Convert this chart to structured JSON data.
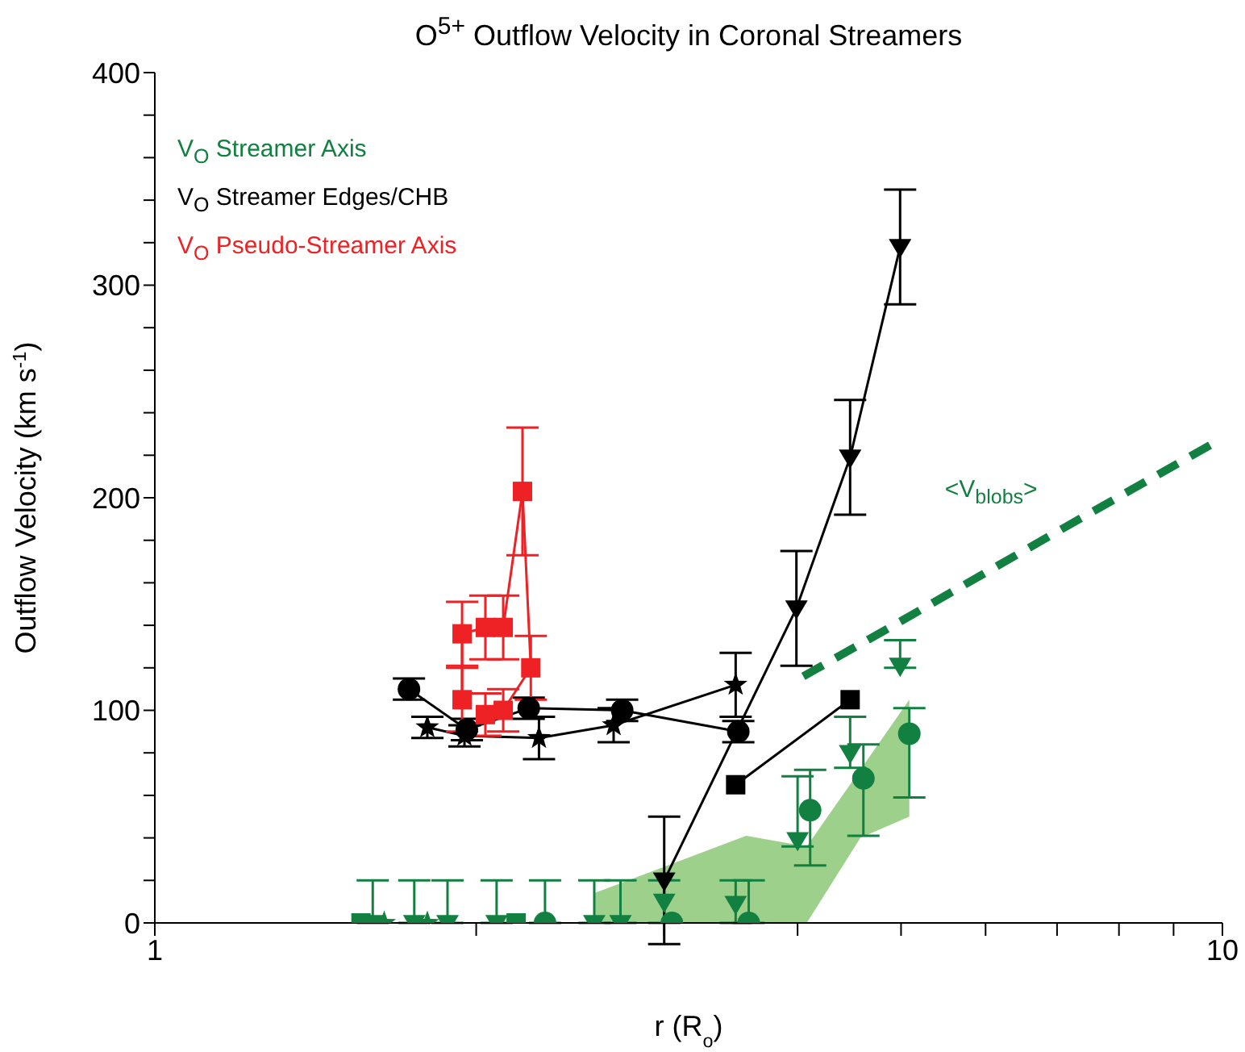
{
  "chart_data": {
    "type": "scatter",
    "title": "O$^{5+}$ Outflow Velocity in Coronal Streamers",
    "xlabel": "r (R$_{o}$)",
    "ylabel": "Outflow Velocity  (km s$^{-1}$)",
    "log": "x",
    "legend": "top left",
    "xlim": [
      1,
      10
    ],
    "xticks": [
      1,
      {
        "value": 2,
        "label": null
      },
      {
        "value": 3,
        "label": null
      },
      {
        "value": 4,
        "label": null
      },
      {
        "value": 5,
        "label": null
      },
      {
        "value": 6,
        "label": null
      },
      {
        "value": 7,
        "label": null
      },
      {
        "value": 8,
        "label": null
      },
      {
        "value": 9,
        "label": null
      },
      10
    ],
    "ylim": [
      0,
      400
    ],
    "yticks": [
      0,
      {
        "value": 20,
        "label": null
      },
      {
        "value": 40,
        "label": null
      },
      {
        "value": 60,
        "label": null
      },
      {
        "value": 80,
        "label": null
      },
      100,
      {
        "value": 120,
        "label": null
      },
      {
        "value": 140,
        "label": null
      },
      {
        "value": 160,
        "label": null
      },
      {
        "value": 180,
        "label": null
      },
      200,
      {
        "value": 220,
        "label": null
      },
      {
        "value": 240,
        "label": null
      },
      {
        "value": 260,
        "label": null
      },
      {
        "value": 280,
        "label": null
      },
      300,
      {
        "value": 320,
        "label": null
      },
      {
        "value": 340,
        "label": null
      },
      {
        "value": 360,
        "label": null
      },
      {
        "value": 380,
        "label": null
      },
      400
    ],
    "annotations": [
      "<V$_{blobs}$>"
    ],
    "series": [
      {
        "type": "line",
        "color": "#9dd08a",
        "x": [
          2.58,
          3.58,
          4.08,
          4.58,
          5.09
        ],
        "values": [
          null,
          null,
          null,
          null,
          null
        ],
        "lower": [
          0,
          0,
          0,
          40,
          50
        ],
        "upper": [
          14,
          41,
          36,
          72,
          105
        ]
      },
      {
        "type": "line",
        "line_style": "dashed",
        "marker": "none",
        "color": "#118040",
        "x": [
          4.05,
          5,
          7,
          10
        ],
        "values": [
          116,
          142,
          184,
          228
        ]
      },
      {
        "type": "scatter",
        "name": "V$_{O}$ Streamer Axis",
        "marker": "triangle",
        "color": "#118040",
        "x": [
          1.6,
          1.75,
          1.88,
          2.09,
          2.58,
          2.73,
          3.0,
          3.5,
          4.0,
          4.48,
          4.99
        ],
        "values": [
          0,
          0,
          0,
          0,
          0,
          0,
          10,
          9,
          39,
          80,
          121
        ],
        "errors": [
          [
            0,
            20
          ],
          [
            0,
            20
          ],
          [
            0,
            20
          ],
          [
            0,
            20
          ],
          [
            0,
            20
          ],
          [
            0,
            20
          ],
          [
            0,
            20
          ],
          [
            0,
            20
          ],
          [
            36,
            69
          ],
          [
            73,
            97
          ],
          [
            120,
            133
          ]
        ]
      },
      {
        "type": "scatter",
        "marker": "circle",
        "color": "#118040",
        "x": [
          2.32,
          3.05,
          3.6,
          4.11,
          4.61,
          5.09
        ],
        "values": [
          0,
          0,
          0,
          53,
          68,
          89
        ],
        "errors": [
          [
            0,
            20
          ],
          null,
          [
            0,
            20
          ],
          [
            27,
            72
          ],
          [
            41,
            84
          ],
          [
            59,
            101
          ]
        ]
      },
      {
        "type": "scatter",
        "marker": "star",
        "color": "#118040",
        "x": [
          1.64,
          1.8
        ],
        "values": [
          0,
          0
        ]
      },
      {
        "type": "scatter",
        "marker": "square",
        "color": "#118040",
        "x": [
          1.56,
          2.18
        ],
        "values": [
          0,
          0
        ]
      },
      {
        "type": "line",
        "name": "V$_{O}$ Streamer Edges/CHB",
        "marker": "circle",
        "color": "#000000",
        "x": [
          1.73,
          1.96,
          2.24,
          2.74,
          3.52
        ],
        "values": [
          110,
          91,
          101,
          100,
          90
        ],
        "errors": [
          5,
          5,
          5,
          5,
          5
        ]
      },
      {
        "type": "line",
        "marker": "star",
        "color": "#000000",
        "x": [
          1.8,
          1.95,
          2.29,
          2.69,
          3.5
        ],
        "values": [
          92,
          88,
          87,
          93,
          112
        ],
        "errors": [
          5,
          5,
          10,
          8,
          15
        ]
      },
      {
        "type": "line",
        "marker": "square",
        "color": "#000000",
        "x": [
          3.5,
          4.48
        ],
        "values": [
          65,
          105
        ]
      },
      {
        "type": "line",
        "marker": "triangle",
        "color": "#000000",
        "x": [
          3.0,
          3.99,
          4.48,
          4.99
        ],
        "values": [
          20,
          148,
          219,
          318
        ],
        "errors": [
          30,
          27,
          27,
          27
        ]
      },
      {
        "type": "line",
        "name": "V$_{O}$ Pseudo-Streamer Axis",
        "marker": "square",
        "color": "#ee2124",
        "x": [
          1.94,
          1.94,
          2.04,
          2.12,
          2.21,
          2.25,
          2.12,
          2.04
        ],
        "values": [
          105,
          136,
          139,
          139,
          203,
          120,
          100,
          98
        ],
        "errors": [
          15,
          15,
          15,
          15,
          30,
          15,
          10,
          10
        ]
      }
    ]
  }
}
